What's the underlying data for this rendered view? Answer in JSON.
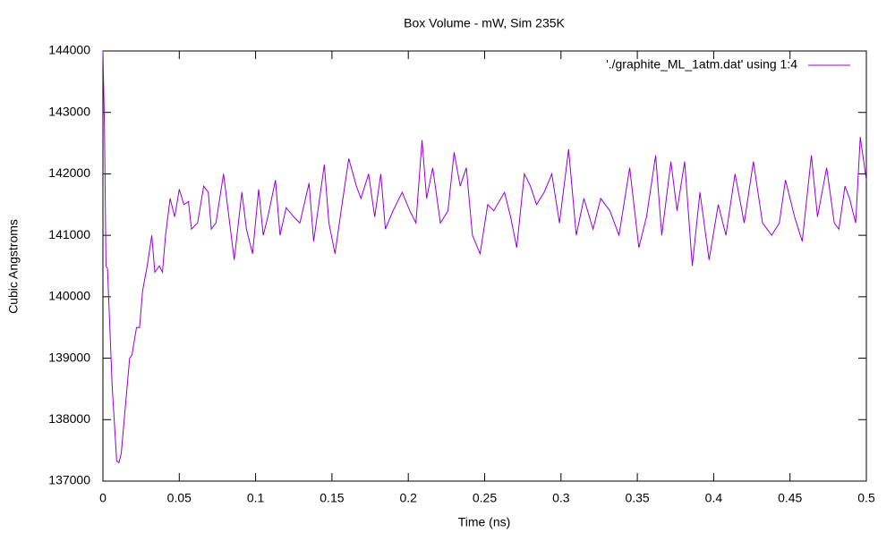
{
  "chart_data": {
    "type": "line",
    "title": "Box Volume - mW, Sim 235K",
    "x_label": "Time (ns)",
    "y_label": "Cubic Angstroms",
    "xlim": [
      0,
      0.5
    ],
    "ylim": [
      137000,
      144000
    ],
    "xticks": [
      0,
      0.05,
      0.1,
      0.15,
      0.2,
      0.25,
      0.3,
      0.35,
      0.4,
      0.45,
      0.5
    ],
    "yticks": [
      137000,
      138000,
      139000,
      140000,
      141000,
      142000,
      143000,
      144000
    ],
    "grid": false,
    "legend_position": "top-right",
    "x": [
      0,
      0.001,
      0.002,
      0.003,
      0.006,
      0.009,
      0.0105,
      0.012,
      0.015,
      0.0175,
      0.019,
      0.022,
      0.024,
      0.026,
      0.029,
      0.032,
      0.034,
      0.037,
      0.039,
      0.041,
      0.044,
      0.047,
      0.05,
      0.053,
      0.056,
      0.058,
      0.062,
      0.066,
      0.069,
      0.071,
      0.074,
      0.079,
      0.083,
      0.086,
      0.091,
      0.094,
      0.098,
      0.102,
      0.105,
      0.108,
      0.113,
      0.116,
      0.12,
      0.125,
      0.129,
      0.135,
      0.138,
      0.145,
      0.148,
      0.152,
      0.156,
      0.161,
      0.166,
      0.169,
      0.174,
      0.178,
      0.182,
      0.185,
      0.19,
      0.196,
      0.201,
      0.205,
      0.209,
      0.212,
      0.216,
      0.221,
      0.226,
      0.23,
      0.234,
      0.238,
      0.242,
      0.247,
      0.252,
      0.256,
      0.263,
      0.267,
      0.271,
      0.276,
      0.28,
      0.284,
      0.289,
      0.294,
      0.299,
      0.305,
      0.31,
      0.315,
      0.321,
      0.326,
      0.332,
      0.338,
      0.345,
      0.351,
      0.356,
      0.362,
      0.366,
      0.372,
      0.376,
      0.381,
      0.386,
      0.391,
      0.397,
      0.403,
      0.408,
      0.414,
      0.42,
      0.426,
      0.432,
      0.438,
      0.443,
      0.447,
      0.453,
      0.458,
      0.464,
      0.468,
      0.474,
      0.479,
      0.482,
      0.486,
      0.489,
      0.493,
      0.496,
      0.5
    ],
    "series": [
      {
        "name": "'./graphite_ML_1atm.dat' using 1:4",
        "color": "#9400d3",
        "values": [
          144000,
          142800,
          140500,
          140460,
          138570,
          137330,
          137300,
          137450,
          138300,
          139000,
          139050,
          139500,
          139500,
          140100,
          140500,
          141000,
          140400,
          140500,
          140400,
          141000,
          141600,
          141300,
          141750,
          141500,
          141550,
          141100,
          141200,
          141800,
          141700,
          141100,
          141200,
          142000,
          141200,
          140600,
          141700,
          141100,
          140700,
          141750,
          141000,
          141300,
          141900,
          141000,
          141450,
          141300,
          141200,
          141850,
          140900,
          142150,
          141200,
          140700,
          141400,
          142250,
          141800,
          141600,
          142000,
          141300,
          142000,
          141100,
          141400,
          141700,
          141400,
          141200,
          142550,
          141600,
          142100,
          141200,
          141400,
          142350,
          141800,
          142100,
          141000,
          140700,
          141500,
          141400,
          141700,
          141300,
          140800,
          142000,
          141800,
          141500,
          141700,
          142000,
          141200,
          142400,
          141000,
          141600,
          141100,
          141600,
          141400,
          141000,
          142100,
          140800,
          141300,
          142300,
          141000,
          142200,
          141400,
          142200,
          140500,
          141700,
          140600,
          141500,
          141000,
          142000,
          141200,
          142200,
          141200,
          141000,
          141200,
          141900,
          141300,
          140900,
          142300,
          141300,
          142100,
          141200,
          141100,
          141800,
          141600,
          141200,
          142600,
          141900
        ]
      }
    ]
  }
}
